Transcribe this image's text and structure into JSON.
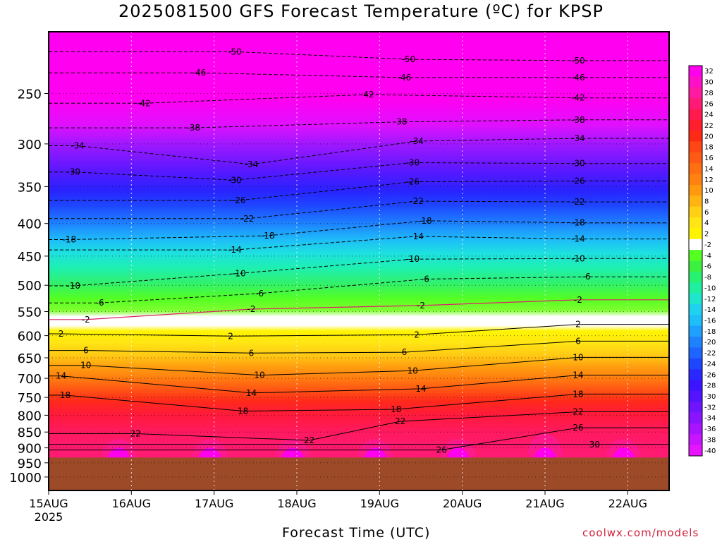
{
  "title": "2025081500 GFS Forecast Temperature (ºC) for KPSP",
  "xlabel": "Forecast Time (UTC)",
  "source": "coolwx.com/models",
  "year_label": "2025",
  "chart_data": {
    "type": "heatmap",
    "title": "2025081500 GFS Forecast Temperature (ºC) for KPSP",
    "xlabel": "Forecast Time (UTC)",
    "ylabel": "",
    "x_ticks": [
      "15AUG",
      "16AUG",
      "17AUG",
      "18AUG",
      "19AUG",
      "20AUG",
      "21AUG",
      "22AUG"
    ],
    "x_range_days": [
      0,
      7.5
    ],
    "y_ticks": [
      250,
      300,
      350,
      400,
      450,
      500,
      550,
      600,
      650,
      700,
      750,
      800,
      850,
      900,
      950,
      1000
    ],
    "y_range_hpa": [
      200,
      1050
    ],
    "y_scale": "log-pressure, inverted",
    "ground_below_hpa": 932,
    "colorbar_labels": [
      32,
      30,
      28,
      26,
      24,
      22,
      20,
      18,
      16,
      14,
      12,
      10,
      8,
      6,
      4,
      2,
      -2,
      -4,
      -6,
      -8,
      -10,
      -12,
      -14,
      -16,
      -18,
      -20,
      -22,
      -24,
      -26,
      -28,
      -30,
      -32,
      -34,
      -36,
      -38,
      -40
    ],
    "colorbar_colors": [
      "#ff00ee",
      "#ff10c8",
      "#ff1aa0",
      "#ff1a78",
      "#ff1a50",
      "#ff1e2e",
      "#ff2a14",
      "#ff4614",
      "#ff5a14",
      "#ff6e10",
      "#ff8210",
      "#ff9a10",
      "#ffb414",
      "#ffd014",
      "#ffe614",
      "#fff400",
      "#ffffff",
      "#54ff22",
      "#3cf040",
      "#28f070",
      "#1ef0a0",
      "#1ee6cc",
      "#1ed2f0",
      "#1ebef8",
      "#1ea0ff",
      "#1e82ff",
      "#1e64ff",
      "#1e46ff",
      "#2828ff",
      "#3c14ff",
      "#5514ff",
      "#6e14ff",
      "#8a14ff",
      "#a814ff",
      "#c814ff",
      "#e614ff"
    ],
    "contour_labels": [
      {
        "label": "-50",
        "day": 2.25,
        "hpa": 215
      },
      {
        "label": "-50",
        "day": 4.35,
        "hpa": 221
      },
      {
        "label": "-50",
        "day": 6.4,
        "hpa": 222
      },
      {
        "label": "-46",
        "day": 1.82,
        "hpa": 232
      },
      {
        "label": "-46",
        "day": 4.3,
        "hpa": 236
      },
      {
        "label": "-46",
        "day": 6.4,
        "hpa": 236
      },
      {
        "label": "-42",
        "day": 1.15,
        "hpa": 259
      },
      {
        "label": "-42",
        "day": 3.85,
        "hpa": 251
      },
      {
        "label": "-42",
        "day": 6.4,
        "hpa": 254
      },
      {
        "label": "-38",
        "day": 1.75,
        "hpa": 283
      },
      {
        "label": "-38",
        "day": 4.25,
        "hpa": 277
      },
      {
        "label": "-38",
        "day": 6.4,
        "hpa": 275
      },
      {
        "label": "-34",
        "day": 0.35,
        "hpa": 302
      },
      {
        "label": "-34",
        "day": 2.45,
        "hpa": 323
      },
      {
        "label": "-34",
        "day": 4.45,
        "hpa": 297
      },
      {
        "label": "-34",
        "day": 6.4,
        "hpa": 294
      },
      {
        "label": "-30",
        "day": 0.3,
        "hpa": 332
      },
      {
        "label": "-30",
        "day": 2.25,
        "hpa": 342
      },
      {
        "label": "-30",
        "day": 4.4,
        "hpa": 321
      },
      {
        "label": "-30",
        "day": 6.4,
        "hpa": 322
      },
      {
        "label": "-26",
        "day": 2.3,
        "hpa": 368
      },
      {
        "label": "-26",
        "day": 4.4,
        "hpa": 344
      },
      {
        "label": "-26",
        "day": 6.4,
        "hpa": 343
      },
      {
        "label": "-22",
        "day": 2.4,
        "hpa": 393
      },
      {
        "label": "-22",
        "day": 4.45,
        "hpa": 369
      },
      {
        "label": "-22",
        "day": 6.4,
        "hpa": 370
      },
      {
        "label": "-18",
        "day": 0.25,
        "hpa": 424
      },
      {
        "label": "-18",
        "day": 2.65,
        "hpa": 418
      },
      {
        "label": "-18",
        "day": 4.55,
        "hpa": 396
      },
      {
        "label": "-18",
        "day": 6.4,
        "hpa": 399
      },
      {
        "label": "-14",
        "day": 2.25,
        "hpa": 440
      },
      {
        "label": "-14",
        "day": 4.45,
        "hpa": 419
      },
      {
        "label": "-14",
        "day": 6.4,
        "hpa": 423
      },
      {
        "label": "-10",
        "day": 0.3,
        "hpa": 501
      },
      {
        "label": "-10",
        "day": 2.3,
        "hpa": 479
      },
      {
        "label": "-10",
        "day": 4.4,
        "hpa": 455
      },
      {
        "label": "-10",
        "day": 6.4,
        "hpa": 454
      },
      {
        "label": "-6",
        "day": 0.62,
        "hpa": 533
      },
      {
        "label": "-6",
        "day": 2.55,
        "hpa": 515
      },
      {
        "label": "-6",
        "day": 4.55,
        "hpa": 489
      },
      {
        "label": "-6",
        "day": 6.5,
        "hpa": 485
      },
      {
        "label": "-2",
        "day": 0.45,
        "hpa": 566
      },
      {
        "label": "-2",
        "day": 2.45,
        "hpa": 545
      },
      {
        "label": "-2",
        "day": 4.5,
        "hpa": 538
      },
      {
        "label": "-2",
        "day": 6.4,
        "hpa": 527
      },
      {
        "label": "2",
        "day": 0.15,
        "hpa": 596
      },
      {
        "label": "2",
        "day": 2.2,
        "hpa": 601
      },
      {
        "label": "2",
        "day": 4.45,
        "hpa": 598
      },
      {
        "label": "2",
        "day": 6.4,
        "hpa": 576
      },
      {
        "label": "6",
        "day": 0.45,
        "hpa": 633
      },
      {
        "label": "6",
        "day": 2.45,
        "hpa": 639
      },
      {
        "label": "6",
        "day": 4.3,
        "hpa": 637
      },
      {
        "label": "6",
        "day": 6.4,
        "hpa": 612
      },
      {
        "label": "10",
        "day": 0.45,
        "hpa": 668
      },
      {
        "label": "10",
        "day": 2.55,
        "hpa": 692
      },
      {
        "label": "10",
        "day": 4.4,
        "hpa": 681
      },
      {
        "label": "10",
        "day": 6.4,
        "hpa": 649
      },
      {
        "label": "14",
        "day": 0.15,
        "hpa": 694
      },
      {
        "label": "14",
        "day": 2.45,
        "hpa": 738
      },
      {
        "label": "14",
        "day": 4.5,
        "hpa": 727
      },
      {
        "label": "14",
        "day": 6.4,
        "hpa": 692
      },
      {
        "label": "18",
        "day": 0.2,
        "hpa": 744
      },
      {
        "label": "18",
        "day": 2.35,
        "hpa": 788
      },
      {
        "label": "18",
        "day": 4.2,
        "hpa": 783
      },
      {
        "label": "18",
        "day": 6.4,
        "hpa": 741
      },
      {
        "label": "22",
        "day": 1.05,
        "hpa": 855
      },
      {
        "label": "22",
        "day": 3.15,
        "hpa": 876
      },
      {
        "label": "22",
        "day": 4.25,
        "hpa": 818
      },
      {
        "label": "22",
        "day": 6.4,
        "hpa": 790
      },
      {
        "label": "26",
        "day": 4.75,
        "hpa": 907
      },
      {
        "label": "26",
        "day": 6.4,
        "hpa": 837
      },
      {
        "label": "30",
        "day": 6.6,
        "hpa": 889
      }
    ]
  }
}
